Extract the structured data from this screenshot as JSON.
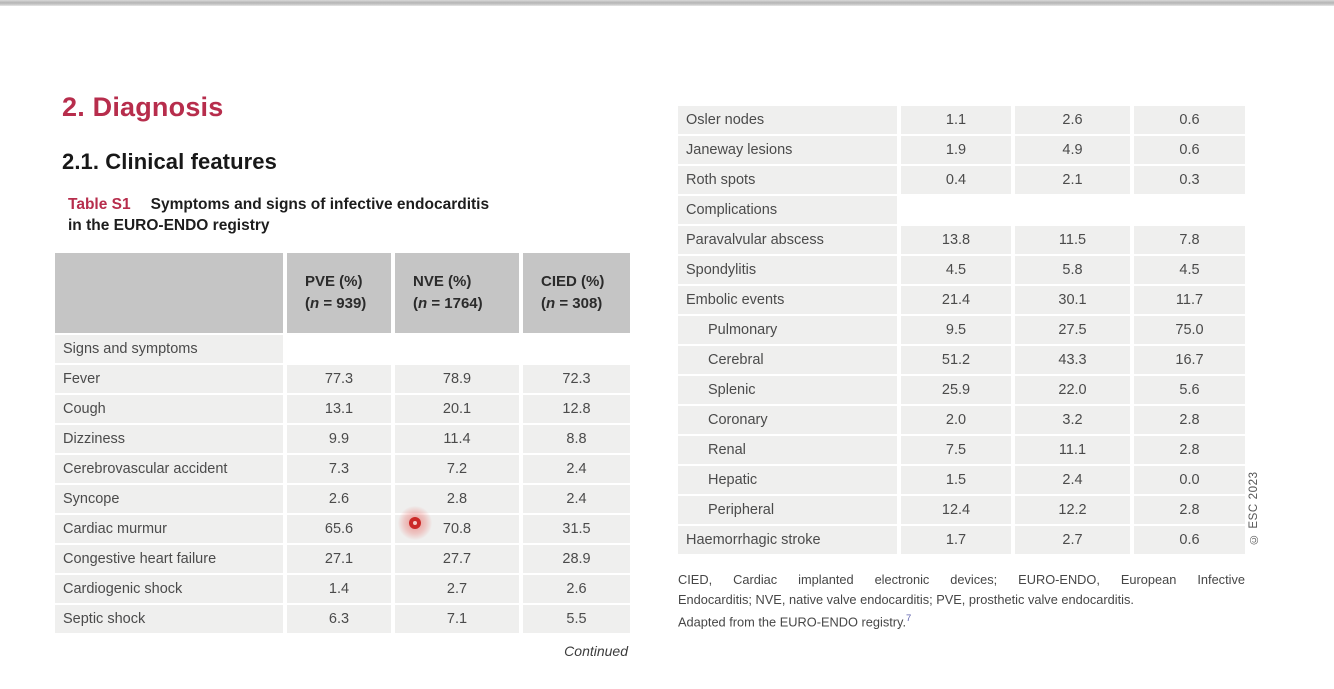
{
  "page": {
    "section_heading": "2. Diagnosis",
    "subsection_heading": "2.1. Clinical features",
    "continued": "Continued",
    "copyright": "© ESC 2023"
  },
  "caption": {
    "label": "Table S1",
    "line1": "Symptoms and signs of infective endocarditis",
    "line2": "in the EURO-ENDO registry"
  },
  "table": {
    "column_headers": [
      {
        "name": "PVE (%)",
        "n": "(n = 939)"
      },
      {
        "name": "NVE (%)",
        "n": "(n = 1764)"
      },
      {
        "name": "CIED (%)",
        "n": "(n = 308)"
      }
    ],
    "left_rows": [
      {
        "label": "Signs and symptoms",
        "section": true
      },
      {
        "label": "Fever",
        "values": [
          "77.3",
          "78.9",
          "72.3"
        ]
      },
      {
        "label": "Cough",
        "values": [
          "13.1",
          "20.1",
          "12.8"
        ]
      },
      {
        "label": "Dizziness",
        "values": [
          "9.9",
          "11.4",
          "8.8"
        ]
      },
      {
        "label": "Cerebrovascular accident",
        "values": [
          "7.3",
          "7.2",
          "2.4"
        ]
      },
      {
        "label": "Syncope",
        "values": [
          "2.6",
          "2.8",
          "2.4"
        ]
      },
      {
        "label": "Cardiac murmur",
        "values": [
          "65.6",
          "70.8",
          "31.5"
        ]
      },
      {
        "label": "Congestive heart failure",
        "values": [
          "27.1",
          "27.7",
          "28.9"
        ]
      },
      {
        "label": "Cardiogenic shock",
        "values": [
          "1.4",
          "2.7",
          "2.6"
        ]
      },
      {
        "label": "Septic shock",
        "values": [
          "6.3",
          "7.1",
          "5.5"
        ]
      }
    ],
    "right_rows": [
      {
        "label": "Osler nodes",
        "values": [
          "1.1",
          "2.6",
          "0.6"
        ]
      },
      {
        "label": "Janeway lesions",
        "values": [
          "1.9",
          "4.9",
          "0.6"
        ]
      },
      {
        "label": "Roth spots",
        "values": [
          "0.4",
          "2.1",
          "0.3"
        ]
      },
      {
        "label": "Complications",
        "section": true
      },
      {
        "label": "Paravalvular abscess",
        "values": [
          "13.8",
          "11.5",
          "7.8"
        ]
      },
      {
        "label": "Spondylitis",
        "values": [
          "4.5",
          "5.8",
          "4.5"
        ]
      },
      {
        "label": "Embolic events",
        "values": [
          "21.4",
          "30.1",
          "11.7"
        ]
      },
      {
        "label": "Pulmonary",
        "indent": true,
        "values": [
          "9.5",
          "27.5",
          "75.0"
        ]
      },
      {
        "label": "Cerebral",
        "indent": true,
        "values": [
          "51.2",
          "43.3",
          "16.7"
        ]
      },
      {
        "label": "Splenic",
        "indent": true,
        "values": [
          "25.9",
          "22.0",
          "5.6"
        ]
      },
      {
        "label": "Coronary",
        "indent": true,
        "values": [
          "2.0",
          "3.2",
          "2.8"
        ]
      },
      {
        "label": "Renal",
        "indent": true,
        "values": [
          "7.5",
          "11.1",
          "2.8"
        ]
      },
      {
        "label": "Hepatic",
        "indent": true,
        "values": [
          "1.5",
          "2.4",
          "0.0"
        ]
      },
      {
        "label": "Peripheral",
        "indent": true,
        "values": [
          "12.4",
          "12.2",
          "2.8"
        ]
      },
      {
        "label": "Haemorrhagic stroke",
        "values": [
          "1.7",
          "2.7",
          "0.6"
        ]
      }
    ]
  },
  "footnote": {
    "line1": "CIED, Cardiac implanted electronic devices; EURO-ENDO, European Infective",
    "line2": "Endocarditis; NVE, native valve endocarditis; PVE, prosthetic valve endocarditis.",
    "line3": "Adapted from the EURO-ENDO registry.",
    "reference_sup": "7"
  },
  "colors": {
    "accent_red": "#b72d4c",
    "header_cell_gray": "#c5c5c5",
    "row_gray": "#efefee",
    "reference_blue": "#5f63ae",
    "pointer_red": "#cb2a28"
  }
}
